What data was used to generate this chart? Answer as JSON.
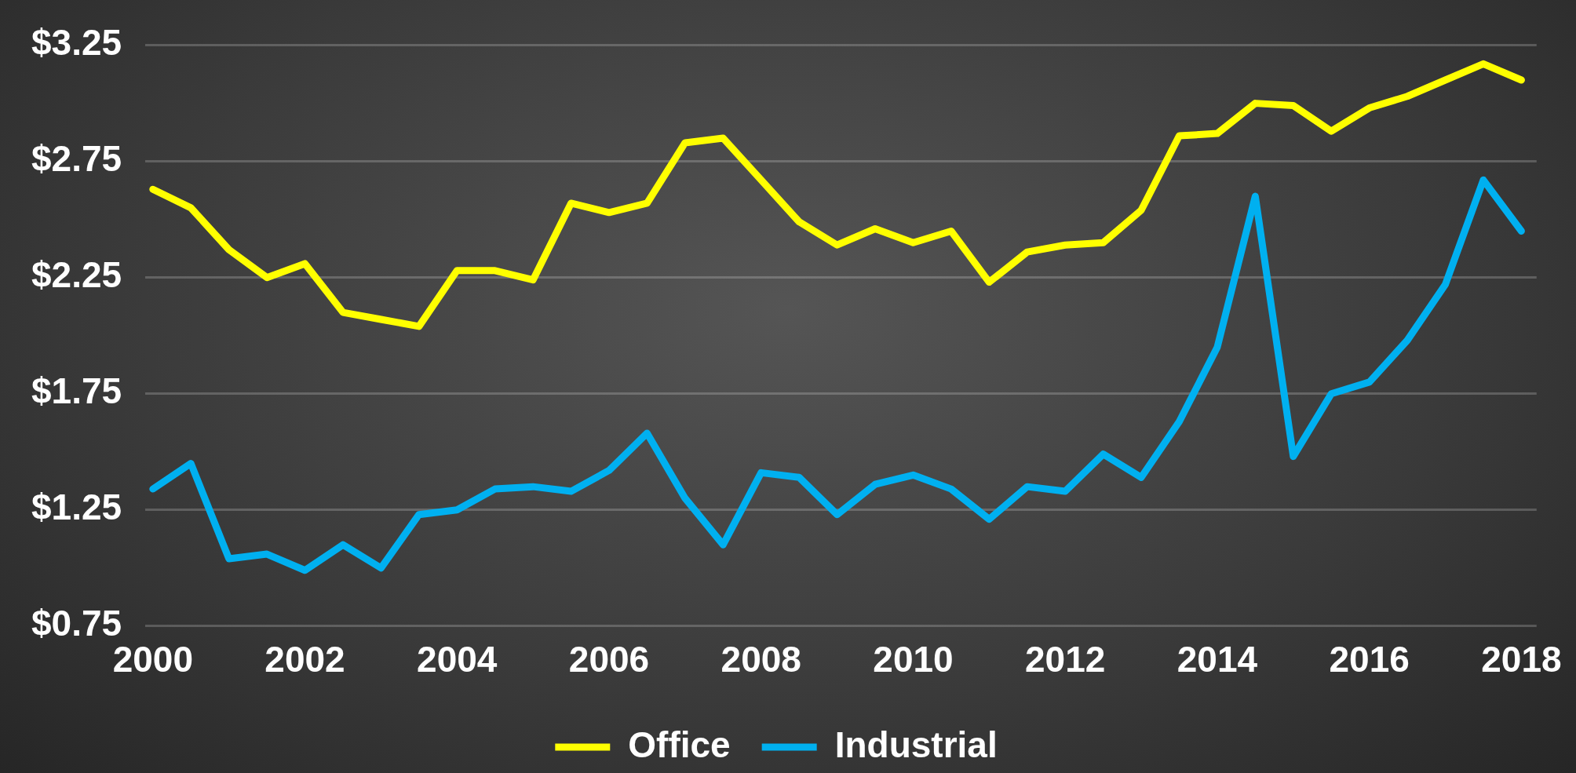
{
  "chart_data": {
    "type": "line",
    "x": [
      2000,
      2000.5,
      2001,
      2001.5,
      2002,
      2002.5,
      2003,
      2003.5,
      2004,
      2004.5,
      2005,
      2005.5,
      2006,
      2006.5,
      2007,
      2007.5,
      2008,
      2008.5,
      2009,
      2009.5,
      2010,
      2010.5,
      2011,
      2011.5,
      2012,
      2012.5,
      2013,
      2013.5,
      2014,
      2014.5,
      2015,
      2015.5,
      2016,
      2016.5,
      2017,
      2017.5,
      2018
    ],
    "series": [
      {
        "name": "Office",
        "color": "#ffff00",
        "values": [
          2.63,
          2.55,
          2.37,
          2.25,
          2.31,
          2.1,
          2.07,
          2.04,
          2.28,
          2.28,
          2.24,
          2.57,
          2.53,
          2.57,
          2.83,
          2.85,
          2.67,
          2.49,
          2.39,
          2.46,
          2.4,
          2.45,
          2.23,
          2.36,
          2.39,
          2.4,
          2.54,
          2.86,
          2.87,
          3.0,
          2.99,
          2.88,
          2.98,
          3.03,
          3.1,
          3.17,
          3.1
        ]
      },
      {
        "name": "Industrial",
        "color": "#00b0f0",
        "values": [
          1.34,
          1.45,
          1.04,
          1.06,
          0.99,
          1.1,
          1.0,
          1.23,
          1.25,
          1.34,
          1.35,
          1.33,
          1.42,
          1.58,
          1.3,
          1.1,
          1.41,
          1.39,
          1.23,
          1.36,
          1.4,
          1.34,
          1.21,
          1.35,
          1.33,
          1.49,
          1.39,
          1.63,
          1.95,
          2.6,
          1.48,
          1.75,
          1.8,
          1.98,
          2.22,
          2.67,
          2.45
        ]
      }
    ],
    "xlim": [
      1999.9,
      2018.2
    ],
    "xticks": [
      2000,
      2002,
      2004,
      2006,
      2008,
      2010,
      2012,
      2014,
      2016,
      2018
    ],
    "ylim": [
      0.75,
      3.25
    ],
    "yticks": [
      {
        "value": 0.75,
        "label": "$0.75"
      },
      {
        "value": 1.25,
        "label": "$1.25"
      },
      {
        "value": 1.75,
        "label": "$1.75"
      },
      {
        "value": 2.25,
        "label": "$2.25"
      },
      {
        "value": 2.75,
        "label": "$2.75"
      },
      {
        "value": 3.25,
        "label": "$3.25"
      }
    ],
    "grid": "y",
    "legend": "bottom",
    "marker": "none",
    "line_style": "solid"
  }
}
